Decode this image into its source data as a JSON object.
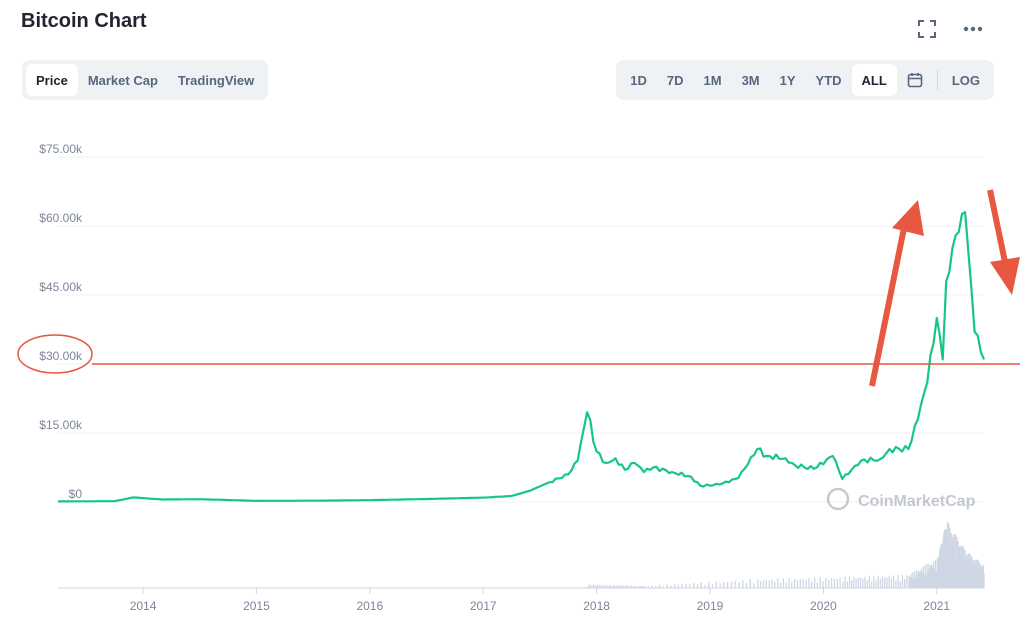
{
  "title": "Bitcoin Chart",
  "tabs_left": [
    {
      "label": "Price",
      "active": true
    },
    {
      "label": "Market Cap",
      "active": false
    },
    {
      "label": "TradingView",
      "active": false
    }
  ],
  "tabs_right": [
    {
      "label": "1D"
    },
    {
      "label": "7D"
    },
    {
      "label": "1M"
    },
    {
      "label": "3M"
    },
    {
      "label": "1Y"
    },
    {
      "label": "YTD"
    },
    {
      "label": "ALL",
      "active": true
    }
  ],
  "log_label": "LOG",
  "icons": {
    "fullscreen": "fullscreen-icon",
    "more": "more-dots-icon",
    "calendar": "calendar-icon"
  },
  "watermark": "CoinMarketCap",
  "colors": {
    "line": "#16c784",
    "annotation": "#e8573f",
    "volume": "#cfd6e4"
  },
  "chart_data": {
    "type": "line",
    "yticks": [
      "$75.00k",
      "$60.00k",
      "$45.00k",
      "$30.00k",
      "$15.00k",
      "$0"
    ],
    "ytick_values": [
      75000,
      60000,
      45000,
      30000,
      15000,
      0
    ],
    "xticks": [
      "2014",
      "2015",
      "2016",
      "2017",
      "2018",
      "2019",
      "2020",
      "2021"
    ],
    "ylim": [
      0,
      75000
    ],
    "xlim": [
      "2013-04",
      "2021-06"
    ],
    "series": [
      {
        "points": [
          [
            "2013-04",
            130
          ],
          [
            "2013-10",
            180
          ],
          [
            "2013-12",
            1000
          ],
          [
            "2014-03",
            550
          ],
          [
            "2014-07",
            600
          ],
          [
            "2015-01",
            250
          ],
          [
            "2015-07",
            280
          ],
          [
            "2016-01",
            400
          ],
          [
            "2016-07",
            650
          ],
          [
            "2017-01",
            950
          ],
          [
            "2017-04",
            1300
          ],
          [
            "2017-06",
            2500
          ],
          [
            "2017-08",
            4300
          ],
          [
            "2017-10",
            6000
          ],
          [
            "2017-11",
            9000
          ],
          [
            "2017-12",
            19500
          ],
          [
            "2018-01",
            11000
          ],
          [
            "2018-02",
            8500
          ],
          [
            "2018-03",
            9500
          ],
          [
            "2018-04",
            7000
          ],
          [
            "2018-05",
            8500
          ],
          [
            "2018-06",
            6500
          ],
          [
            "2018-07",
            7500
          ],
          [
            "2018-09",
            6500
          ],
          [
            "2018-11",
            5500
          ],
          [
            "2018-12",
            3500
          ],
          [
            "2019-02",
            3800
          ],
          [
            "2019-04",
            5200
          ],
          [
            "2019-06",
            11500
          ],
          [
            "2019-07",
            10000
          ],
          [
            "2019-09",
            9500
          ],
          [
            "2019-10",
            8000
          ],
          [
            "2019-12",
            7200
          ],
          [
            "2020-02",
            10000
          ],
          [
            "2020-03",
            5000
          ],
          [
            "2020-05",
            9000
          ],
          [
            "2020-07",
            9300
          ],
          [
            "2020-08",
            11500
          ],
          [
            "2020-10",
            11500
          ],
          [
            "2020-11",
            18000
          ],
          [
            "2020-12",
            26000
          ],
          [
            "2021-01",
            40000
          ],
          [
            "2021-01-20",
            31000
          ],
          [
            "2021-02",
            48000
          ],
          [
            "2021-03",
            58000
          ],
          [
            "2021-04",
            63000
          ],
          [
            "2021-05",
            37000
          ],
          [
            "2021-06",
            31000
          ]
        ]
      }
    ],
    "volume": [
      [
        "2017-12",
        0.05
      ],
      [
        "2018-06",
        0.03
      ],
      [
        "2019-06",
        0.12
      ],
      [
        "2020-03",
        0.15
      ],
      [
        "2020-10",
        0.18
      ],
      [
        "2021-01",
        0.4
      ],
      [
        "2021-02",
        0.9
      ],
      [
        "2021-04",
        0.5
      ],
      [
        "2021-06",
        0.3
      ]
    ],
    "annotations": {
      "highlight_tick": "$30.00k",
      "horizontal_line_value": 30000,
      "arrows": [
        "up",
        "down"
      ]
    }
  }
}
